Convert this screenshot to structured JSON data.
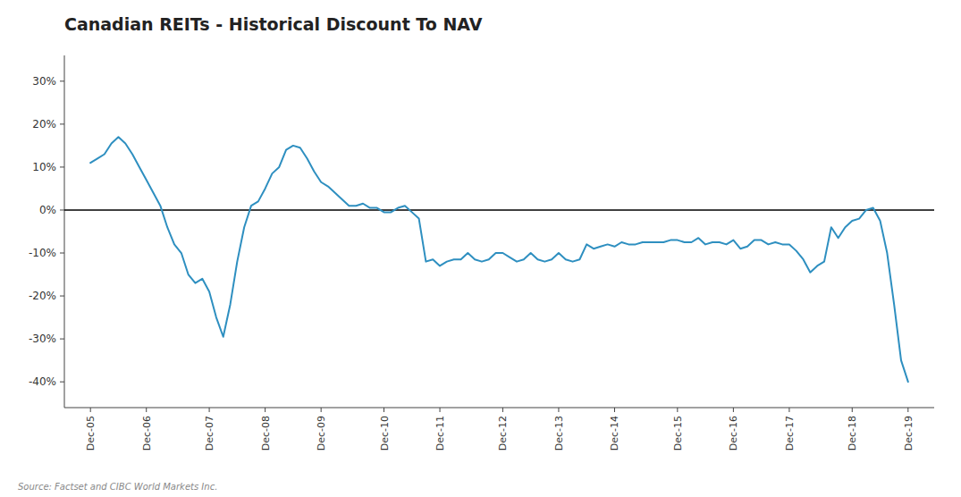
{
  "chart_data": {
    "type": "line",
    "title": "Canadian REITs - Historical Discount To NAV",
    "source": "Source: Factset and CIBC World Markets Inc.",
    "color": "#2e8fc0",
    "grid": false,
    "ylim": [
      -0.46,
      0.36
    ],
    "yticks": [
      {
        "value": -0.4,
        "label": "-40%"
      },
      {
        "value": -0.3,
        "label": "-30%"
      },
      {
        "value": -0.2,
        "label": "-20%"
      },
      {
        "value": -0.1,
        "label": "-10%"
      },
      {
        "value": 0.0,
        "label": "0%"
      },
      {
        "value": 0.1,
        "label": "10%"
      },
      {
        "value": 0.2,
        "label": "20%"
      },
      {
        "value": 0.3,
        "label": "30%"
      }
    ],
    "categories": [
      "Dec-05",
      null,
      null,
      null,
      null,
      null,
      null,
      null,
      "Dec-06",
      null,
      null,
      null,
      null,
      null,
      null,
      null,
      null,
      "Dec-07",
      null,
      null,
      null,
      null,
      null,
      null,
      null,
      "Dec-08",
      null,
      null,
      null,
      null,
      null,
      null,
      null,
      "Dec-09",
      null,
      null,
      null,
      null,
      null,
      null,
      null,
      null,
      "Dec-10",
      null,
      null,
      null,
      null,
      null,
      null,
      null,
      "Dec-11",
      null,
      null,
      null,
      null,
      null,
      null,
      null,
      null,
      "Dec-12",
      null,
      null,
      null,
      null,
      null,
      null,
      null,
      "Dec-13",
      null,
      null,
      null,
      null,
      null,
      null,
      null,
      "Dec-14",
      null,
      null,
      null,
      null,
      null,
      null,
      null,
      null,
      "Dec-15",
      null,
      null,
      null,
      null,
      null,
      null,
      null,
      "Dec-16",
      null,
      null,
      null,
      null,
      null,
      null,
      null,
      "Dec-17",
      null,
      null,
      null,
      null,
      null,
      null,
      null,
      null,
      "Dec-18",
      null,
      null,
      null,
      null,
      null,
      null,
      null,
      "Dec-19"
    ],
    "values": [
      0.11,
      0.12,
      0.13,
      0.155,
      0.17,
      0.155,
      0.13,
      0.1,
      0.07,
      0.04,
      0.01,
      -0.04,
      -0.08,
      -0.1,
      -0.15,
      -0.17,
      -0.16,
      -0.19,
      -0.25,
      -0.295,
      -0.22,
      -0.12,
      -0.04,
      0.01,
      0.02,
      0.05,
      0.085,
      0.1,
      0.14,
      0.15,
      0.145,
      0.12,
      0.09,
      0.065,
      0.055,
      0.04,
      0.025,
      0.01,
      0.01,
      0.015,
      0.005,
      0.005,
      -0.005,
      -0.005,
      0.005,
      0.01,
      -0.005,
      -0.02,
      -0.12,
      -0.115,
      -0.13,
      -0.12,
      -0.115,
      -0.115,
      -0.1,
      -0.115,
      -0.12,
      -0.115,
      -0.1,
      -0.1,
      -0.11,
      -0.12,
      -0.115,
      -0.1,
      -0.115,
      -0.12,
      -0.115,
      -0.1,
      -0.115,
      -0.12,
      -0.115,
      -0.08,
      -0.09,
      -0.085,
      -0.08,
      -0.085,
      -0.075,
      -0.08,
      -0.08,
      -0.075,
      -0.075,
      -0.075,
      -0.075,
      -0.07,
      -0.07,
      -0.075,
      -0.075,
      -0.065,
      -0.08,
      -0.075,
      -0.075,
      -0.08,
      -0.07,
      -0.09,
      -0.085,
      -0.07,
      -0.07,
      -0.08,
      -0.075,
      -0.08,
      -0.08,
      -0.095,
      -0.115,
      -0.145,
      -0.13,
      -0.12,
      -0.04,
      -0.065,
      -0.04,
      -0.025,
      -0.02,
      0.0,
      0.005,
      -0.025,
      -0.1,
      -0.22,
      -0.35,
      -0.4
    ]
  }
}
